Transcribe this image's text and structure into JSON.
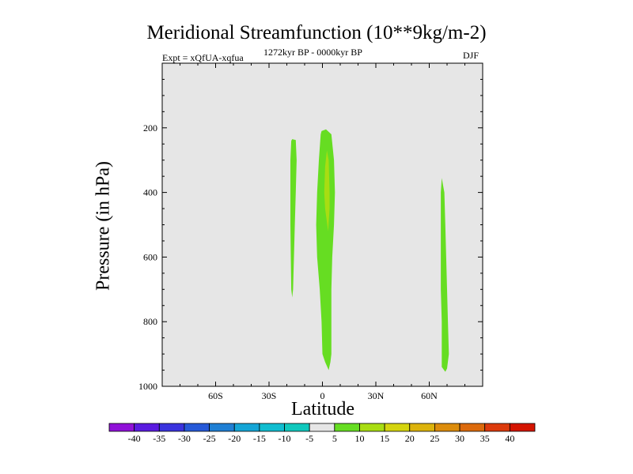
{
  "chart_data": {
    "type": "heatmap",
    "title": "Meridional Streamfunction (10**9kg/m-2)",
    "subtitle_left": "Expt = xQfUA-xqfua",
    "subtitle_center": "1272kyr BP - 0000kyr BP",
    "subtitle_right": "DJF",
    "xlabel": "Latitude",
    "ylabel": "Pressure (in hPa)",
    "xlim": [
      -90,
      90
    ],
    "ylim": [
      1000,
      0
    ],
    "x_ticks": [
      -60,
      -30,
      0,
      30,
      60
    ],
    "x_tick_labels": [
      "60S",
      "30S",
      "0",
      "30N",
      "60N"
    ],
    "y_ticks": [
      200,
      400,
      600,
      800,
      1000
    ],
    "y_tick_labels": [
      "200",
      "400",
      "600",
      "800",
      "1000"
    ],
    "background_color": "#e6e6e6",
    "contours": [
      {
        "name": "cell-15S",
        "level": 5,
        "color": "#66dd22",
        "points": [
          [
            -17,
            235
          ],
          [
            -15,
            238
          ],
          [
            -14.5,
            300
          ],
          [
            -15,
            400
          ],
          [
            -15.5,
            500
          ],
          [
            -16,
            600
          ],
          [
            -16.5,
            700
          ],
          [
            -17,
            725
          ],
          [
            -17.5,
            700
          ],
          [
            -17.8,
            600
          ],
          [
            -18,
            500
          ],
          [
            -18,
            400
          ],
          [
            -18,
            300
          ],
          [
            -17.5,
            240
          ]
        ]
      },
      {
        "name": "cell-equator",
        "level": 5,
        "color": "#66dd22",
        "points": [
          [
            -0.5,
            210
          ],
          [
            2,
            205
          ],
          [
            5,
            220
          ],
          [
            6.5,
            300
          ],
          [
            7,
            400
          ],
          [
            6.5,
            500
          ],
          [
            5.5,
            600
          ],
          [
            5,
            700
          ],
          [
            5,
            800
          ],
          [
            5,
            900
          ],
          [
            4.5,
            925
          ],
          [
            3.5,
            950
          ],
          [
            1.5,
            925
          ],
          [
            0,
            900
          ],
          [
            -0.5,
            800
          ],
          [
            -1.5,
            700
          ],
          [
            -3,
            600
          ],
          [
            -3.5,
            500
          ],
          [
            -3,
            400
          ],
          [
            -2,
            300
          ],
          [
            -1,
            220
          ]
        ]
      },
      {
        "name": "cell-equator-core",
        "level": 10,
        "color": "#a8dd12",
        "points": [
          [
            2.5,
            270
          ],
          [
            3.5,
            300
          ],
          [
            4,
            400
          ],
          [
            4,
            450
          ],
          [
            3.2,
            520
          ],
          [
            1.5,
            450
          ],
          [
            1,
            400
          ],
          [
            1.5,
            320
          ]
        ]
      },
      {
        "name": "cell-70N",
        "level": 5,
        "color": "#66dd22",
        "points": [
          [
            67,
            355
          ],
          [
            68.5,
            400
          ],
          [
            69,
            500
          ],
          [
            69.5,
            600
          ],
          [
            70,
            700
          ],
          [
            70.5,
            800
          ],
          [
            71,
            900
          ],
          [
            70,
            945
          ],
          [
            69,
            955
          ],
          [
            67,
            940
          ],
          [
            67,
            800
          ],
          [
            66.5,
            700
          ],
          [
            66.5,
            600
          ],
          [
            66.5,
            500
          ],
          [
            66.5,
            400
          ]
        ]
      }
    ],
    "colorbar": {
      "levels": [
        "-40",
        "-35",
        "-30",
        "-25",
        "-20",
        "-15",
        "-10",
        "-5",
        "5",
        "10",
        "15",
        "20",
        "25",
        "30",
        "35",
        "40"
      ],
      "colors": [
        "#9011d8",
        "#5a1be0",
        "#3a33de",
        "#2659d8",
        "#1f7fd4",
        "#14a5d6",
        "#10bdd0",
        "#10c8bd",
        "#e6e6e6",
        "#66dd22",
        "#a8dd12",
        "#d4d40e",
        "#dcb30c",
        "#dc8c0c",
        "#dc6a0c",
        "#dc3a0c",
        "#d41400"
      ]
    }
  }
}
